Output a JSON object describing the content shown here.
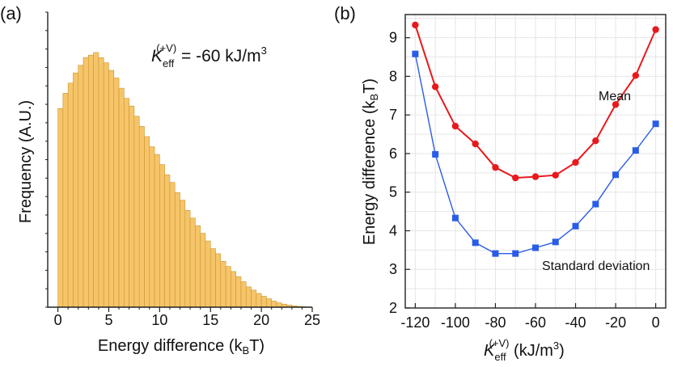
{
  "chart_data": [
    {
      "panel": "(a)",
      "type": "bar",
      "title": "",
      "xlabel": "Energy difference (k",
      "xlabel_sub": "B",
      "xlabel_tail": "T)",
      "ylabel": "Frequency (A.U.)",
      "annotation": {
        "symbol": "K",
        "subscript": "eff",
        "superscript": "(+V)",
        "text": " = -60 kJ/m",
        "exp": "3"
      },
      "xlim": [
        -1,
        25
      ],
      "ylim": [
        0,
        1.0
      ],
      "xticks": [
        "0",
        "5",
        "10",
        "15",
        "20",
        "25"
      ],
      "bin_width": 0.5,
      "bin_start": 0,
      "values": [
        0.78,
        0.84,
        0.88,
        0.92,
        0.95,
        0.98,
        0.99,
        1.0,
        0.98,
        0.96,
        0.93,
        0.9,
        0.86,
        0.82,
        0.79,
        0.75,
        0.71,
        0.67,
        0.63,
        0.6,
        0.56,
        0.52,
        0.49,
        0.45,
        0.42,
        0.38,
        0.35,
        0.32,
        0.29,
        0.26,
        0.23,
        0.21,
        0.18,
        0.16,
        0.14,
        0.12,
        0.1,
        0.08,
        0.067,
        0.054,
        0.043,
        0.033,
        0.024,
        0.017,
        0.012,
        0.008,
        0.005,
        0.003,
        0.002,
        0.001
      ]
    },
    {
      "panel": "(b)",
      "type": "line",
      "xlabel_symbol": "K",
      "xlabel_sub": "eff",
      "xlabel_sup": "(+V)",
      "xlabel_tail": " (kJ/m",
      "xlabel_exp": "3",
      "xlabel_close": ")",
      "ylabel": "Energy difference (k",
      "ylabel_sub": "B",
      "ylabel_tail": "T)",
      "xlim": [
        -125,
        5
      ],
      "ylim": [
        2,
        9.6
      ],
      "xticks": [
        "-120",
        "-100",
        "-80",
        "-60",
        "-40",
        "-20",
        "0"
      ],
      "yticks": [
        "2",
        "3",
        "4",
        "5",
        "6",
        "7",
        "8",
        "9"
      ],
      "x": [
        -120,
        -110,
        -100,
        -90,
        -80,
        -70,
        -60,
        -50,
        -40,
        -30,
        -20,
        -10,
        0
      ],
      "series": [
        {
          "name": "Mean",
          "color": "#e8191c",
          "marker": "circle",
          "values": [
            9.33,
            7.73,
            6.71,
            6.25,
            5.64,
            5.37,
            5.4,
            5.44,
            5.77,
            6.33,
            7.27,
            8.02,
            9.21
          ]
        },
        {
          "name": "Standard deviation",
          "color": "#2a5ce8",
          "marker": "square",
          "values": [
            8.58,
            5.98,
            4.33,
            3.69,
            3.41,
            3.41,
            3.56,
            3.71,
            4.12,
            4.69,
            5.45,
            6.08,
            6.77
          ]
        }
      ]
    }
  ]
}
